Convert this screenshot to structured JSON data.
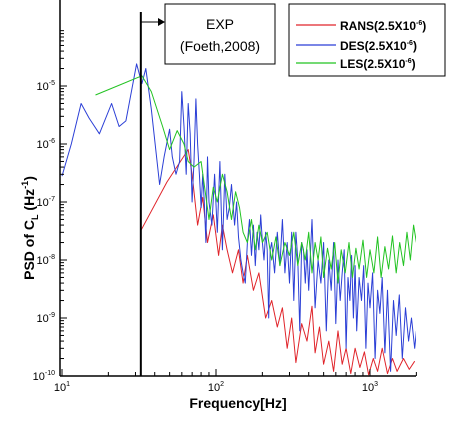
{
  "chart_data": {
    "type": "line",
    "xscale": "log",
    "yscale": "log",
    "xlim": [
      10,
      2000
    ],
    "ylim": [
      1e-10,
      0.0001
    ],
    "xlabel": "Frequency[Hz]",
    "ylabel_base": "PSD of C",
    "ylabel_sub": "L",
    "ylabel_unit": " (Hz",
    "ylabel_unit_exp": "-1",
    "ylabel_close": ")",
    "x_ticks": [
      {
        "base": "10",
        "exp": "1",
        "value": 10
      },
      {
        "base": "10",
        "exp": "2",
        "value": 100
      },
      {
        "base": "10",
        "exp": "3",
        "value": 1000
      }
    ],
    "y_ticks": [
      {
        "base": "10",
        "exp": "-10",
        "value": 1e-10
      },
      {
        "base": "10",
        "exp": "-9",
        "value": 1e-09
      },
      {
        "base": "10",
        "exp": "-8",
        "value": 1e-08
      },
      {
        "base": "10",
        "exp": "-7",
        "value": 1e-07
      },
      {
        "base": "10",
        "exp": "-6",
        "value": 1e-06
      },
      {
        "base": "10",
        "exp": "-5",
        "value": 1e-05
      }
    ],
    "legend": {
      "position": "top-right",
      "entries": [
        {
          "label": "RANS(2.5X10",
          "sup": "-6",
          "close": ")",
          "color": "#e0242a"
        },
        {
          "label": "DES(2.5X10",
          "sup": "-6",
          "close": ")",
          "color": "#2b3fd6"
        },
        {
          "label": "LES(2.5X10",
          "sup": "-6",
          "close": ")",
          "color": "#22c322"
        }
      ]
    },
    "annotation": {
      "line1": "EXP",
      "line2": "(Foeth,2008)",
      "vline_x": 32.5
    },
    "series": [
      {
        "name": "RANS(2.5X10-6)",
        "color": "#e0242a",
        "points": [
          [
            32.5,
            3.2e-08
          ],
          [
            48,
            2.2e-07
          ],
          [
            66,
            8e-07
          ],
          [
            70,
            3e-07
          ],
          [
            76,
            4e-08
          ],
          [
            82,
            1.2e-07
          ],
          [
            88,
            2e-08
          ],
          [
            96,
            6e-08
          ],
          [
            104,
            1.2e-08
          ],
          [
            110,
            4e-08
          ],
          [
            118,
            1.5e-08
          ],
          [
            128,
            6e-09
          ],
          [
            140,
            1.5e-08
          ],
          [
            150,
            4e-09
          ],
          [
            160,
            1.2e-08
          ],
          [
            175,
            3e-09
          ],
          [
            190,
            6e-09
          ],
          [
            210,
            1e-09
          ],
          [
            230,
            2e-09
          ],
          [
            250,
            7e-10
          ],
          [
            270,
            1.5e-09
          ],
          [
            290,
            3e-10
          ],
          [
            310,
            1e-09
          ],
          [
            330,
            1.7e-10
          ],
          [
            360,
            8e-10
          ],
          [
            390,
            4e-10
          ],
          [
            420,
            1.6e-09
          ],
          [
            440,
            2.5e-10
          ],
          [
            470,
            7e-10
          ],
          [
            500,
            1.6e-10
          ],
          [
            540,
            4e-10
          ],
          [
            580,
            1.2e-10
          ],
          [
            620,
            6e-10
          ],
          [
            660,
            1.6e-10
          ],
          [
            700,
            3e-10
          ],
          [
            750,
            1.1e-10
          ],
          [
            800,
            3e-10
          ],
          [
            860,
            1.4e-10
          ],
          [
            920,
            2.6e-10
          ],
          [
            980,
            1.05e-10
          ],
          [
            1050,
            2e-10
          ],
          [
            1120,
            1.2e-10
          ],
          [
            1200,
            3e-10
          ],
          [
            1300,
            1.1e-10
          ],
          [
            1400,
            2e-10
          ],
          [
            1500,
            1.2e-10
          ],
          [
            1650,
            2e-10
          ],
          [
            1800,
            1.3e-10
          ],
          [
            1950,
            1.8e-10
          ]
        ]
      },
      {
        "name": "DES(2.5X10-6)",
        "color": "#2b3fd6",
        "points": [
          [
            10,
            2.8e-07
          ],
          [
            11.5,
            1e-06
          ],
          [
            13.3,
            5e-06
          ],
          [
            15,
            2.8e-06
          ],
          [
            17.5,
            1.5e-06
          ],
          [
            21,
            5e-06
          ],
          [
            23.5,
            2e-06
          ],
          [
            26,
            2.5e-06
          ],
          [
            30.5,
            2.4e-05
          ],
          [
            33,
            1.1e-05
          ],
          [
            35,
            2e-05
          ],
          [
            38,
            4e-06
          ],
          [
            43,
            2e-07
          ],
          [
            46,
            6e-07
          ],
          [
            50,
            1.8e-06
          ],
          [
            52,
            6e-07
          ],
          [
            55,
            3e-07
          ],
          [
            58,
            5e-07
          ],
          [
            60,
            8e-06
          ],
          [
            62,
            2e-06
          ],
          [
            64,
            3e-07
          ],
          [
            66,
            5e-06
          ],
          [
            68,
            1.5e-06
          ],
          [
            70,
            1e-07
          ],
          [
            72,
            5e-07
          ],
          [
            74,
            6e-06
          ],
          [
            76,
            1e-06
          ],
          [
            78,
            3e-07
          ],
          [
            80,
            8e-08
          ],
          [
            82,
            3e-07
          ],
          [
            84,
            1e-07
          ],
          [
            86,
            2e-08
          ],
          [
            88,
            6e-07
          ],
          [
            90,
            1e-07
          ],
          [
            94,
            4e-08
          ],
          [
            98,
            3e-07
          ],
          [
            102,
            3e-08
          ],
          [
            106,
            5e-07
          ],
          [
            110,
            1.5e-08
          ],
          [
            114,
            3e-07
          ],
          [
            118,
            5e-08
          ],
          [
            122,
            8e-08
          ],
          [
            126,
            2e-07
          ],
          [
            132,
            4e-08
          ],
          [
            136,
            1e-07
          ],
          [
            140,
            2.5e-08
          ],
          [
            145,
            1e-08
          ],
          [
            150,
            6e-09
          ],
          [
            155,
            4e-09
          ],
          [
            160,
            2e-08
          ],
          [
            165,
            5e-08
          ],
          [
            170,
            1.2e-08
          ],
          [
            175,
            4e-08
          ],
          [
            180,
            8e-09
          ],
          [
            185,
            3e-08
          ],
          [
            190,
            1.5e-08
          ],
          [
            195,
            6e-08
          ],
          [
            200,
            2e-08
          ],
          [
            205,
            1e-08
          ],
          [
            210,
            3e-08
          ],
          [
            215,
            1.5e-08
          ],
          [
            220,
            1e-09
          ],
          [
            225,
            1.5e-08
          ],
          [
            230,
            2e-08
          ],
          [
            240,
            6e-09
          ],
          [
            250,
            3e-08
          ],
          [
            260,
            8e-09
          ],
          [
            270,
            5e-08
          ],
          [
            280,
            6e-09
          ],
          [
            290,
            2e-08
          ],
          [
            300,
            4e-09
          ],
          [
            310,
            3e-08
          ],
          [
            320,
            2e-09
          ],
          [
            330,
            3e-08
          ],
          [
            340,
            1e-08
          ],
          [
            350,
            6e-10
          ],
          [
            360,
            2e-08
          ],
          [
            370,
            1.5e-08
          ],
          [
            380,
            4e-09
          ],
          [
            390,
            1.5e-08
          ],
          [
            400,
            3e-09
          ],
          [
            420,
            5e-08
          ],
          [
            440,
            1.5e-09
          ],
          [
            460,
            1e-08
          ],
          [
            480,
            4e-09
          ],
          [
            500,
            2e-08
          ],
          [
            520,
            6e-10
          ],
          [
            540,
            1e-08
          ],
          [
            560,
            3e-09
          ],
          [
            580,
            2e-08
          ],
          [
            600,
            8e-10
          ],
          [
            620,
            1e-08
          ],
          [
            640,
            2e-09
          ],
          [
            660,
            6e-09
          ],
          [
            680,
            1.5e-08
          ],
          [
            700,
            3e-10
          ],
          [
            720,
            5e-09
          ],
          [
            740,
            2e-09
          ],
          [
            760,
            1.2e-08
          ],
          [
            780,
            1e-09
          ],
          [
            800,
            8e-09
          ],
          [
            820,
            6e-10
          ],
          [
            850,
            5e-09
          ],
          [
            880,
            2e-09
          ],
          [
            910,
            8e-09
          ],
          [
            940,
            3e-10
          ],
          [
            970,
            4e-09
          ],
          [
            1000,
            1.5e-09
          ],
          [
            1040,
            6e-09
          ],
          [
            1080,
            2e-10
          ],
          [
            1120,
            3e-09
          ],
          [
            1160,
            1.2e-09
          ],
          [
            1200,
            5e-09
          ],
          [
            1250,
            2.5e-10
          ],
          [
            1300,
            3e-09
          ],
          [
            1360,
            1.2e-10
          ],
          [
            1420,
            2e-09
          ],
          [
            1480,
            5e-10
          ],
          [
            1550,
            2.5e-09
          ],
          [
            1620,
            2e-10
          ],
          [
            1700,
            1.5e-09
          ],
          [
            1780,
            4e-10
          ],
          [
            1860,
            1e-09
          ],
          [
            1950,
            3e-10
          ],
          [
            2000,
            6e-10
          ]
        ]
      },
      {
        "name": "LES(2.5X10-6)",
        "color": "#22c322",
        "points": [
          [
            16.5,
            7e-06
          ],
          [
            33,
            1.5e-05
          ],
          [
            38,
            8e-06
          ],
          [
            45,
            2e-06
          ],
          [
            50,
            8e-07
          ],
          [
            56,
            1.7e-06
          ],
          [
            62,
            1e-06
          ],
          [
            66,
            5e-07
          ],
          [
            72,
            4e-07
          ],
          [
            80,
            5e-07
          ],
          [
            90,
            5e-08
          ],
          [
            96,
            1.8e-07
          ],
          [
            102,
            1e-07
          ],
          [
            110,
            3e-07
          ],
          [
            118,
            1.5e-07
          ],
          [
            126,
            5e-08
          ],
          [
            134,
            1.5e-07
          ],
          [
            142,
            8e-08
          ],
          [
            150,
            3e-08
          ],
          [
            160,
            2e-08
          ],
          [
            170,
            5e-08
          ],
          [
            180,
            1.5e-08
          ],
          [
            190,
            4e-08
          ],
          [
            200,
            2e-08
          ],
          [
            215,
            3e-08
          ],
          [
            230,
            1e-08
          ],
          [
            245,
            2.5e-08
          ],
          [
            260,
            8e-09
          ],
          [
            280,
            2e-08
          ],
          [
            300,
            1.2e-08
          ],
          [
            320,
            3e-08
          ],
          [
            340,
            8e-09
          ],
          [
            360,
            2e-08
          ],
          [
            380,
            1e-08
          ],
          [
            400,
            3e-08
          ],
          [
            420,
            6e-09
          ],
          [
            440,
            2e-08
          ],
          [
            460,
            1e-08
          ],
          [
            480,
            2.5e-08
          ],
          [
            500,
            5e-09
          ],
          [
            530,
            1.6e-08
          ],
          [
            560,
            7e-09
          ],
          [
            590,
            2e-08
          ],
          [
            620,
            4e-09
          ],
          [
            650,
            1.5e-08
          ],
          [
            690,
            6e-09
          ],
          [
            730,
            2e-08
          ],
          [
            770,
            5e-09
          ],
          [
            810,
            1.6e-08
          ],
          [
            850,
            7e-09
          ],
          [
            900,
            2.2e-08
          ],
          [
            950,
            5e-09
          ],
          [
            1000,
            1.5e-08
          ],
          [
            1060,
            6e-09
          ],
          [
            1120,
            2.5e-08
          ],
          [
            1180,
            5e-09
          ],
          [
            1250,
            1.7e-08
          ],
          [
            1320,
            7e-09
          ],
          [
            1400,
            2.6e-08
          ],
          [
            1480,
            6e-09
          ],
          [
            1560,
            2e-08
          ],
          [
            1650,
            8e-09
          ],
          [
            1740,
            3e-08
          ],
          [
            1830,
            1e-08
          ],
          [
            1920,
            4e-08
          ],
          [
            2000,
            2e-08
          ]
        ]
      }
    ]
  }
}
